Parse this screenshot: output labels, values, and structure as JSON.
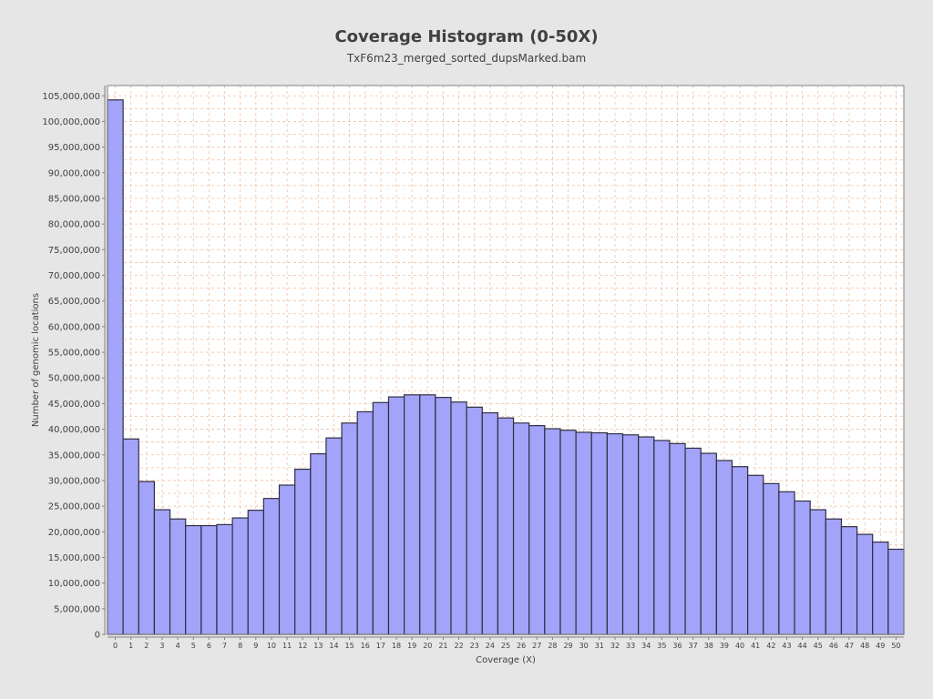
{
  "chart_data": {
    "type": "bar",
    "title": "Coverage Histogram (0-50X)",
    "subtitle": "TxF6m23_merged_sorted_dupsMarked.bam",
    "xlabel": "Coverage (X)",
    "ylabel": "Number of genomic locations",
    "categories": [
      "0",
      "1",
      "2",
      "3",
      "4",
      "5",
      "6",
      "7",
      "8",
      "9",
      "10",
      "11",
      "12",
      "13",
      "14",
      "15",
      "16",
      "17",
      "18",
      "19",
      "20",
      "21",
      "22",
      "23",
      "24",
      "25",
      "26",
      "27",
      "28",
      "29",
      "30",
      "31",
      "32",
      "33",
      "34",
      "35",
      "36",
      "37",
      "38",
      "39",
      "40",
      "41",
      "42",
      "43",
      "44",
      "45",
      "46",
      "47",
      "48",
      "49",
      "50"
    ],
    "values": [
      104200000,
      38100000,
      29800000,
      24300000,
      22500000,
      21200000,
      21200000,
      21400000,
      22700000,
      24200000,
      26500000,
      29100000,
      32200000,
      35200000,
      38300000,
      41200000,
      43400000,
      45200000,
      46300000,
      46700000,
      46700000,
      46200000,
      45300000,
      44300000,
      43200000,
      42200000,
      41200000,
      40700000,
      40100000,
      39800000,
      39400000,
      39300000,
      39100000,
      38900000,
      38500000,
      37800000,
      37200000,
      36300000,
      35300000,
      33900000,
      32700000,
      31000000,
      29400000,
      27800000,
      26000000,
      24300000,
      22500000,
      21000000,
      19500000,
      18000000,
      16600000
    ],
    "yticks": [
      0,
      5000000,
      10000000,
      15000000,
      20000000,
      25000000,
      30000000,
      35000000,
      40000000,
      45000000,
      50000000,
      55000000,
      60000000,
      65000000,
      70000000,
      75000000,
      80000000,
      85000000,
      90000000,
      95000000,
      100000000,
      105000000
    ],
    "ylim": [
      0,
      107000000
    ],
    "grid": true,
    "colors": {
      "bar_fill": "#a3a3fa",
      "bar_stroke": "#303040",
      "grid": "#f0c0a0",
      "plot_bg": "#ffffff",
      "background": "#e6e6e6",
      "text": "#404040"
    }
  }
}
